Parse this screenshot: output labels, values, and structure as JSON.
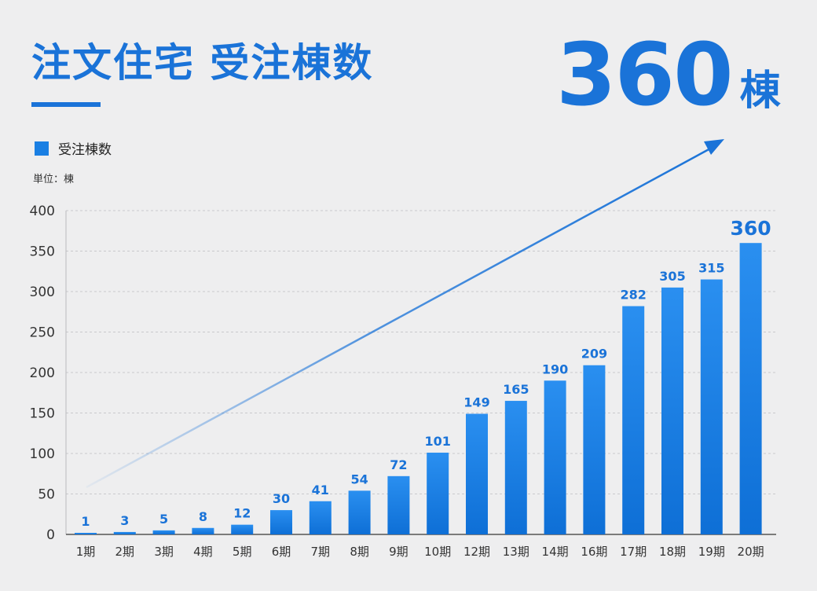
{
  "header": {
    "title": "注文住宅 受注棟数",
    "big_value": "360",
    "big_unit": "棟"
  },
  "legend": {
    "label": "受注棟数"
  },
  "unit_label": "単位：棟",
  "colors": {
    "accent": "#1a73d8",
    "bar_top": "#2a8ff0",
    "bar_bottom": "#0e6fd6",
    "grid": "#c9c9cc",
    "background": "#eeeeef"
  },
  "chart_data": {
    "type": "bar",
    "categories": [
      "1期",
      "2期",
      "3期",
      "4期",
      "5期",
      "6期",
      "7期",
      "8期",
      "9期",
      "10期",
      "12期",
      "13期",
      "14期",
      "16期",
      "17期",
      "18期",
      "19期",
      "20期"
    ],
    "series": [
      {
        "name": "受注棟数",
        "values": [
          1,
          3,
          5,
          8,
          12,
          30,
          41,
          54,
          72,
          101,
          149,
          165,
          190,
          209,
          282,
          305,
          315,
          360
        ]
      }
    ],
    "ylim": [
      0,
      400
    ],
    "yticks": [
      0,
      50,
      100,
      150,
      200,
      250,
      300,
      350,
      400
    ],
    "grid": true,
    "legend_position": "top-left",
    "annotation": "upward trend arrow"
  }
}
